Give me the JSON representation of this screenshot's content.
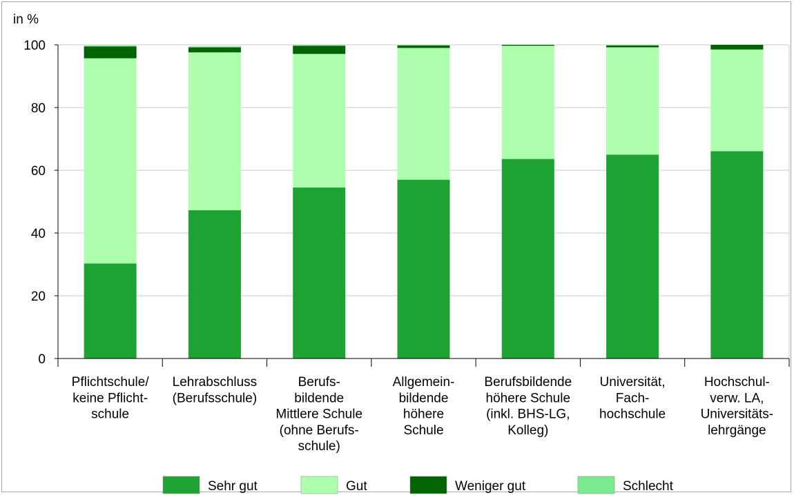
{
  "chart_data": {
    "type": "bar",
    "stacked": true,
    "ylabel": "in %",
    "ylim": [
      0,
      100
    ],
    "yticks": [
      0,
      20,
      40,
      60,
      80,
      100
    ],
    "grid": true,
    "legend_position": "bottom",
    "categories": [
      [
        "Pflichtschule/",
        "keine Pflicht-",
        "schule"
      ],
      [
        "Lehrabschluss",
        "(Berufsschule)"
      ],
      [
        "Berufs-",
        "bildende",
        "Mittlere Schule",
        "(ohne Berufs-",
        "schule)"
      ],
      [
        "Allgemein-",
        "bildende",
        "höhere",
        "Schule"
      ],
      [
        "Berufsbildende",
        "höhere Schule",
        "(inkl. BHS-LG,",
        "Kolleg)"
      ],
      [
        "Universität,",
        "Fach-",
        "hochschule"
      ],
      [
        "Hochschul-",
        "verw. LA,",
        "Universitäts-",
        "lehrgänge"
      ]
    ],
    "series": [
      {
        "name": "Sehr gut",
        "color": "#1ea232",
        "values": [
          30.3,
          47.3,
          54.5,
          57.0,
          63.6,
          65.0,
          66.1
        ]
      },
      {
        "name": "Gut",
        "color": "#adffad",
        "values": [
          65.4,
          50.3,
          42.6,
          42.0,
          36.1,
          34.2,
          32.4
        ]
      },
      {
        "name": "Weniger gut",
        "color": "#006400",
        "values": [
          3.8,
          1.6,
          2.6,
          0.8,
          0.3,
          0.6,
          1.5
        ]
      },
      {
        "name": "Schlecht",
        "color": "#7ceb8f",
        "values": [
          0.3,
          0.3,
          0.2,
          0.1,
          0.0,
          0.1,
          0.0
        ]
      }
    ]
  }
}
